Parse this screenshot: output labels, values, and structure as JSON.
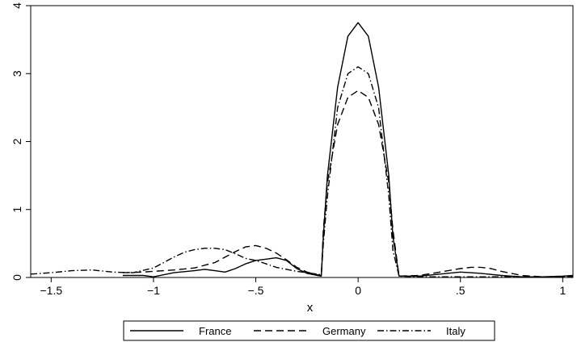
{
  "chart_data": {
    "type": "line",
    "title": "",
    "xlabel": "x",
    "ylabel": "",
    "xlim": [
      -1.6,
      1.05
    ],
    "ylim": [
      0,
      4
    ],
    "xticks": [
      -1.5,
      -1,
      -0.5,
      0,
      0.5,
      1
    ],
    "xtick_labels": [
      "−1.5",
      "−1",
      "−.5",
      "0",
      ".5",
      "1"
    ],
    "yticks": [
      0,
      1,
      2,
      3,
      4
    ],
    "ytick_labels": [
      "0",
      "1",
      "2",
      "3",
      "4"
    ],
    "grid": false,
    "legend_position": "bottom",
    "series": [
      {
        "name": "France",
        "style": "solid",
        "x": [
          -1.15,
          -1.05,
          -1.0,
          -0.9,
          -0.8,
          -0.75,
          -0.7,
          -0.65,
          -0.6,
          -0.55,
          -0.5,
          -0.45,
          -0.4,
          -0.35,
          -0.3,
          -0.25,
          -0.2,
          -0.18,
          -0.17,
          -0.15,
          -0.1,
          -0.05,
          0,
          0.05,
          0.1,
          0.15,
          0.17,
          0.2,
          0.3,
          0.4,
          0.5,
          0.55,
          0.6,
          0.7,
          0.8,
          0.9,
          1.0,
          1.05
        ],
        "y": [
          0.03,
          0.03,
          0.01,
          0.07,
          0.1,
          0.12,
          0.1,
          0.08,
          0.13,
          0.2,
          0.25,
          0.27,
          0.29,
          0.25,
          0.13,
          0.06,
          0.03,
          0.02,
          0.6,
          1.5,
          2.8,
          3.55,
          3.75,
          3.55,
          2.8,
          1.5,
          0.6,
          0.02,
          0.02,
          0.05,
          0.08,
          0.07,
          0.06,
          0.03,
          0.01,
          0.01,
          0.02,
          0.03
        ]
      },
      {
        "name": "Germany",
        "style": "dash",
        "x": [
          -1.15,
          -1.05,
          -1.0,
          -0.9,
          -0.8,
          -0.7,
          -0.6,
          -0.55,
          -0.5,
          -0.45,
          -0.4,
          -0.35,
          -0.3,
          -0.25,
          -0.2,
          -0.18,
          -0.17,
          -0.15,
          -0.1,
          -0.05,
          0,
          0.05,
          0.1,
          0.15,
          0.17,
          0.2,
          0.3,
          0.4,
          0.5,
          0.55,
          0.6,
          0.65,
          0.7,
          0.8,
          0.9,
          1.0,
          1.05
        ],
        "y": [
          0.07,
          0.08,
          0.09,
          0.11,
          0.14,
          0.22,
          0.38,
          0.45,
          0.47,
          0.43,
          0.36,
          0.26,
          0.15,
          0.08,
          0.04,
          0.03,
          0.7,
          1.4,
          2.25,
          2.65,
          2.75,
          2.65,
          2.25,
          1.4,
          0.7,
          0.02,
          0.03,
          0.08,
          0.13,
          0.15,
          0.15,
          0.13,
          0.09,
          0.03,
          0.01,
          0.01,
          0.02
        ]
      },
      {
        "name": "Italy",
        "style": "dashdot",
        "x": [
          -1.6,
          -1.5,
          -1.4,
          -1.3,
          -1.2,
          -1.1,
          -1.0,
          -0.95,
          -0.9,
          -0.85,
          -0.8,
          -0.75,
          -0.7,
          -0.65,
          -0.6,
          -0.55,
          -0.5,
          -0.45,
          -0.4,
          -0.35,
          -0.3,
          -0.25,
          -0.2,
          -0.18,
          -0.17,
          -0.15,
          -0.1,
          -0.05,
          0,
          0.05,
          0.1,
          0.15,
          0.17,
          0.2,
          0.3,
          0.4,
          0.5,
          0.6,
          0.7,
          0.8,
          0.9,
          1.0,
          1.05
        ],
        "y": [
          0.05,
          0.07,
          0.1,
          0.11,
          0.08,
          0.07,
          0.14,
          0.22,
          0.3,
          0.37,
          0.41,
          0.43,
          0.43,
          0.41,
          0.35,
          0.28,
          0.25,
          0.2,
          0.15,
          0.12,
          0.09,
          0.07,
          0.05,
          0.04,
          0.5,
          1.2,
          2.5,
          3.0,
          3.1,
          3.0,
          2.5,
          1.2,
          0.4,
          0.02,
          0.01,
          0.01,
          0.01,
          0.01,
          0.01,
          0.01,
          0.01,
          0.01,
          0.01
        ]
      }
    ]
  }
}
